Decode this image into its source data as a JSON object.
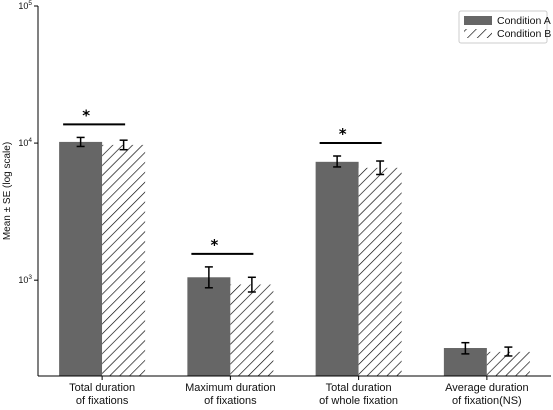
{
  "chart_data": {
    "type": "bar",
    "yscale": "log",
    "ylim": [
      200,
      100000
    ],
    "yticks": [
      {
        "value": 1000,
        "base": "10",
        "exp": "3"
      },
      {
        "value": 10000,
        "base": "10",
        "exp": "4"
      },
      {
        "value": 100000,
        "base": "10",
        "exp": "5"
      }
    ],
    "ylabel": "Mean ± SE (log scale)",
    "categories": [
      [
        "Total duration",
        "of fixations"
      ],
      [
        "Maximum duration",
        "of fixations"
      ],
      [
        "Total duration",
        "of whole fixation"
      ],
      [
        "Average duration",
        "of fixation(NS)"
      ]
    ],
    "series": [
      {
        "name": "Condition A",
        "values": [
          10200,
          1050,
          7300,
          320
        ],
        "se_low": [
          9450,
          880,
          6700,
          290
        ],
        "se_high": [
          11000,
          1250,
          8050,
          350
        ],
        "color": "#666666",
        "pattern": "solid"
      },
      {
        "name": "Condition B",
        "values": [
          9700,
          930,
          6600,
          300
        ],
        "se_low": [
          8950,
          820,
          5900,
          280
        ],
        "se_high": [
          10500,
          1050,
          7400,
          325
        ],
        "color": "#000000",
        "pattern": "hatched"
      }
    ],
    "significance": [
      {
        "category": 0,
        "label": "*"
      },
      {
        "category": 1,
        "label": "*"
      },
      {
        "category": 2,
        "label": "*"
      }
    ],
    "legend_position": "top-right",
    "grid": false
  }
}
